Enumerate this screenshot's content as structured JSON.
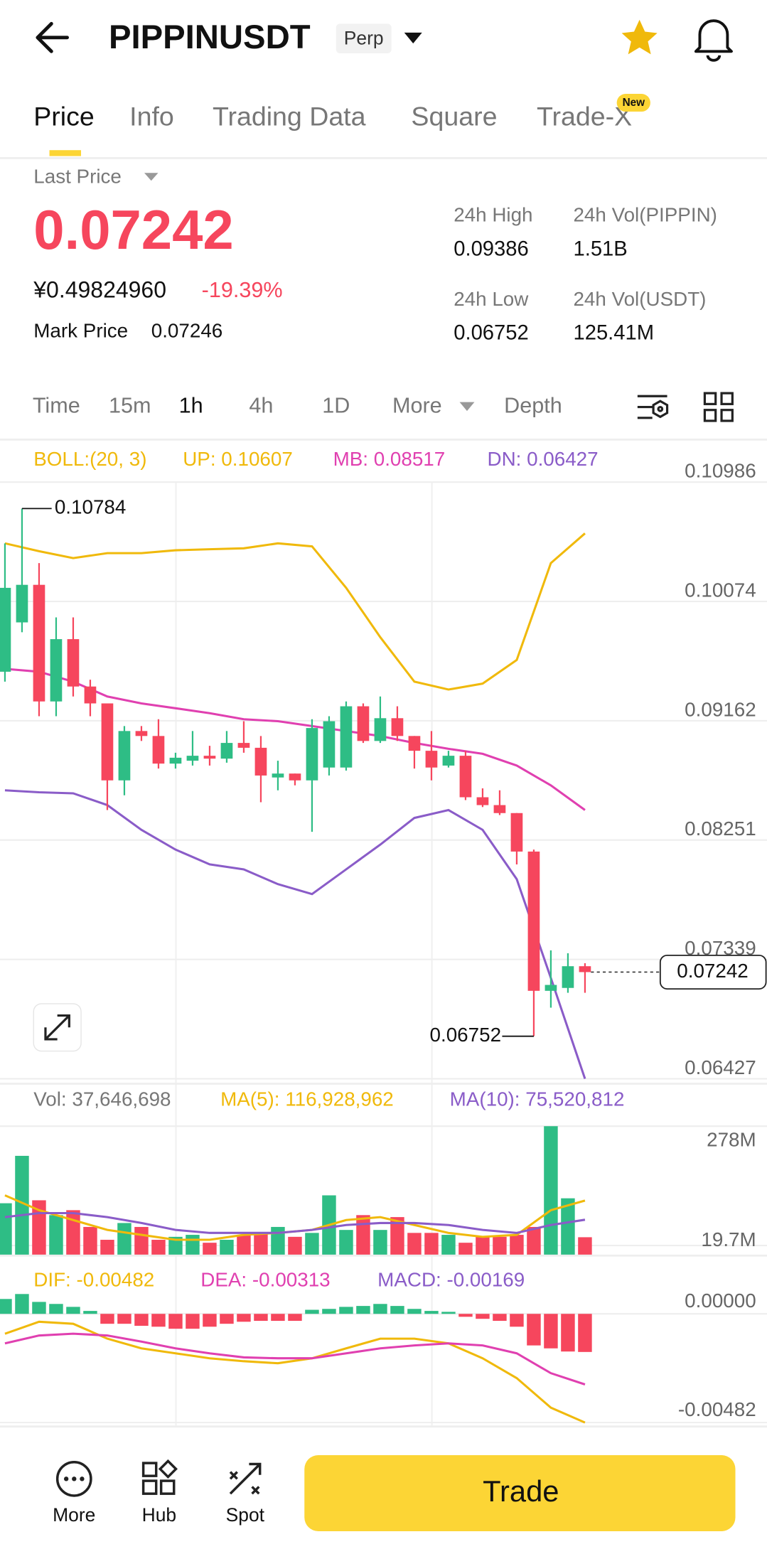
{
  "header": {
    "title": "PIPPINUSDT",
    "badge": "Perp"
  },
  "tabs": {
    "items": [
      "Price",
      "Info",
      "Trading Data",
      "Square",
      "Trade-X"
    ],
    "new_badge": "New"
  },
  "price": {
    "last_price_label": "Last Price",
    "last": "0.07242",
    "cny": "¥0.49824960",
    "change": "-19.39%",
    "mark_label": "Mark Price",
    "mark": "0.07246"
  },
  "stats": [
    {
      "label": "24h High",
      "value": "0.09386"
    },
    {
      "label": "24h Vol(PIPPIN)",
      "value": "1.51B"
    },
    {
      "label": "24h Low",
      "value": "0.06752"
    },
    {
      "label": "24h Vol(USDT)",
      "value": "125.41M"
    }
  ],
  "timeframes": [
    "Time",
    "15m",
    "1h",
    "4h",
    "1D",
    "More",
    "Depth"
  ],
  "indicators": {
    "boll": [
      "BOLL:(20, 3)",
      "UP: 0.10607",
      "MB: 0.08517",
      "DN: 0.06427"
    ],
    "vol": [
      "Vol: 37,646,698",
      "MA(5): 116,928,962",
      "MA(10): 75,520,812"
    ],
    "macd": [
      "DIF: -0.00482",
      "DEA: -0.00313",
      "MACD: -0.00169"
    ]
  },
  "bottom_nav": {
    "items": [
      "More",
      "Hub",
      "Spot"
    ],
    "trade": "Trade"
  },
  "chart_data": [
    {
      "type": "candlestick",
      "up_color": "#2ebd85",
      "down_color": "#f6465d",
      "open": [
        0.09537,
        0.09914,
        0.10201,
        0.0931,
        0.09786,
        0.09424,
        0.09295,
        0.08707,
        0.09084,
        0.09046,
        0.08835,
        0.08857,
        0.08895,
        0.08873,
        0.08993,
        0.08956,
        0.08729,
        0.08759,
        0.08707,
        0.08805,
        0.08805,
        0.09273,
        0.09008,
        0.09182,
        0.09046,
        0.08933,
        0.0882,
        0.08895,
        0.08578,
        0.08518,
        0.08457,
        0.08163,
        0.07099,
        0.07121,
        0.07287
      ],
      "high": [
        0.10518,
        0.10784,
        0.10367,
        0.09952,
        0.09952,
        0.09476,
        0.09295,
        0.09122,
        0.09122,
        0.09174,
        0.08918,
        0.09084,
        0.08971,
        0.09084,
        0.09159,
        0.09046,
        0.08857,
        0.08759,
        0.09174,
        0.09197,
        0.0931,
        0.09295,
        0.09348,
        0.09273,
        0.09046,
        0.09084,
        0.08933,
        0.08933,
        0.08646,
        0.08631,
        0.08457,
        0.08178,
        0.07408,
        0.07386,
        0.0731
      ],
      "low": [
        0.09461,
        0.09839,
        0.09197,
        0.09197,
        0.09348,
        0.09197,
        0.0848,
        0.08593,
        0.09008,
        0.08797,
        0.08797,
        0.0882,
        0.0882,
        0.08842,
        0.08918,
        0.0854,
        0.08631,
        0.08669,
        0.08314,
        0.08744,
        0.08782,
        0.08993,
        0.08993,
        0.09008,
        0.08797,
        0.08707,
        0.08805,
        0.08556,
        0.08503,
        0.08442,
        0.08065,
        0.06752,
        0.0697,
        0.07084,
        0.07084
      ],
      "close": [
        0.10178,
        0.10201,
        0.0931,
        0.09786,
        0.09424,
        0.09295,
        0.08707,
        0.09084,
        0.09046,
        0.08835,
        0.0888,
        0.08895,
        0.08873,
        0.08993,
        0.08956,
        0.08744,
        0.08759,
        0.08707,
        0.09107,
        0.09159,
        0.09273,
        0.09008,
        0.09182,
        0.09046,
        0.08933,
        0.08805,
        0.08895,
        0.08578,
        0.08518,
        0.08457,
        0.08163,
        0.07099,
        0.07144,
        0.07287,
        0.07242
      ],
      "ylim": [
        0.06427,
        0.10986
      ],
      "yticks": [
        0.10986,
        0.10074,
        0.09162,
        0.08251,
        0.07339,
        0.06427
      ],
      "lines": [
        {
          "name": "UP",
          "color": "#f0b90b",
          "x": [
            0,
            2,
            4,
            6,
            8,
            10,
            12,
            14,
            16,
            18,
            20,
            22,
            24,
            26,
            28,
            30,
            32,
            34
          ],
          "values": [
            0.10518,
            0.10458,
            0.10405,
            0.10443,
            0.10443,
            0.10465,
            0.10473,
            0.1048,
            0.10518,
            0.10495,
            0.10178,
            0.09801,
            0.09461,
            0.09401,
            0.09446,
            0.09627,
            0.10367,
            0.10594
          ]
        },
        {
          "name": "MB",
          "color": "#e040b0",
          "x": [
            0,
            2,
            4,
            6,
            8,
            10,
            12,
            14,
            16,
            18,
            20,
            22,
            24,
            26,
            28,
            30,
            32,
            34
          ],
          "values": [
            0.09559,
            0.09537,
            0.09461,
            0.09348,
            0.09295,
            0.09258,
            0.0922,
            0.09174,
            0.09159,
            0.09122,
            0.09084,
            0.09046,
            0.08993,
            0.08948,
            0.0891,
            0.0882,
            0.08669,
            0.0848
          ]
        },
        {
          "name": "DN",
          "color": "#8a5cc8",
          "x": [
            0,
            2,
            4,
            6,
            8,
            10,
            12,
            14,
            16,
            18,
            20,
            22,
            24,
            26,
            28,
            30,
            32,
            34
          ],
          "values": [
            0.08631,
            0.08616,
            0.08608,
            0.08518,
            0.08329,
            0.08178,
            0.08065,
            0.08027,
            0.07914,
            0.07838,
            0.08027,
            0.08216,
            0.0842,
            0.0848,
            0.08329,
            0.07952,
            0.07197,
            0.06427
          ]
        }
      ]
    },
    {
      "type": "volume",
      "values": [
        111200000,
        213800000,
        117600000,
        85500000,
        96200000,
        59900000,
        32100000,
        68400000,
        59900000,
        32100000,
        38500000,
        42800000,
        25700000,
        32100000,
        42800000,
        47000000,
        59900000,
        38500000,
        47000000,
        128300000,
        53400000,
        85500000,
        53400000,
        81200000,
        47000000,
        47000000,
        42800000,
        25700000,
        38500000,
        38500000,
        42800000,
        59900000,
        278000000,
        121900000,
        37646698
      ],
      "ylim": [
        0,
        278000000
      ],
      "yticks": [
        {
          "value": 278000000,
          "label": "278M"
        },
        {
          "value": 19700000,
          "label": "19.7M"
        }
      ],
      "lines": [
        {
          "name": "MA(5)",
          "color": "#f0b90b",
          "x": [
            0,
            2,
            4,
            6,
            8,
            10,
            12,
            14,
            16,
            18,
            20,
            22,
            24,
            26,
            28,
            30,
            32,
            34
          ],
          "values": [
            128300000,
            96200000,
            74800000,
            53500000,
            42800000,
            32100000,
            32100000,
            42800000,
            47000000,
            53500000,
            74800000,
            81200000,
            64100000,
            47000000,
            38500000,
            42800000,
            96200000,
            116928962
          ]
        },
        {
          "name": "MA(10)",
          "color": "#8a5cc8",
          "x": [
            0,
            2,
            4,
            6,
            8,
            10,
            12,
            14,
            16,
            18,
            20,
            22,
            24,
            26,
            28,
            30,
            32,
            34
          ],
          "values": [
            81200000,
            89800000,
            89800000,
            81200000,
            68400000,
            53500000,
            47000000,
            47000000,
            47000000,
            53500000,
            64100000,
            68400000,
            68400000,
            64100000,
            53500000,
            47000000,
            64100000,
            75520812
          ]
        }
      ]
    },
    {
      "type": "macd",
      "up_color": "#2ebd85",
      "down_color": "#f6465d",
      "values": [
        0.00066,
        0.00088,
        0.00053,
        0.00044,
        0.00031,
        0.00013,
        -0.00044,
        -0.00044,
        -0.00053,
        -0.00057,
        -0.00066,
        -0.00066,
        -0.00057,
        -0.00044,
        -0.00035,
        -0.00031,
        -0.00031,
        -0.00031,
        0.00018,
        0.00022,
        0.00031,
        0.00035,
        0.00044,
        0.00035,
        0.00022,
        0.00013,
        9e-05,
        -0.00013,
        -0.00022,
        -0.00031,
        -0.00057,
        -0.0014,
        -0.00153,
        -0.00167,
        -0.00169
      ],
      "ylim": [
        -0.00482,
        0.00197
      ],
      "yticks": [
        {
          "value": 0,
          "label": "0.00000"
        },
        -0.00482
      ],
      "lines": [
        {
          "name": "DIF",
          "color": "#f0b90b",
          "x": [
            0,
            2,
            4,
            6,
            8,
            10,
            12,
            14,
            16,
            18,
            20,
            22,
            24,
            26,
            28,
            30,
            32,
            34
          ],
          "values": [
            -0.00088,
            -0.00035,
            -0.00044,
            -0.0011,
            -0.00153,
            -0.00175,
            -0.00197,
            -0.0021,
            -0.00219,
            -0.00197,
            -0.00153,
            -0.0011,
            -0.0011,
            -0.00131,
            -0.00197,
            -0.00285,
            -0.00416,
            -0.00482
          ]
        },
        {
          "name": "DEA",
          "color": "#e040b0",
          "x": [
            0,
            2,
            4,
            6,
            8,
            10,
            12,
            14,
            16,
            18,
            20,
            22,
            24,
            26,
            28,
            30,
            32,
            34
          ],
          "values": [
            -0.00131,
            -0.00096,
            -0.00088,
            -0.00096,
            -0.00123,
            -0.00153,
            -0.00175,
            -0.00193,
            -0.00197,
            -0.00197,
            -0.00175,
            -0.00153,
            -0.0014,
            -0.00131,
            -0.0014,
            -0.00175,
            -0.00263,
            -0.00313
          ]
        }
      ]
    }
  ]
}
